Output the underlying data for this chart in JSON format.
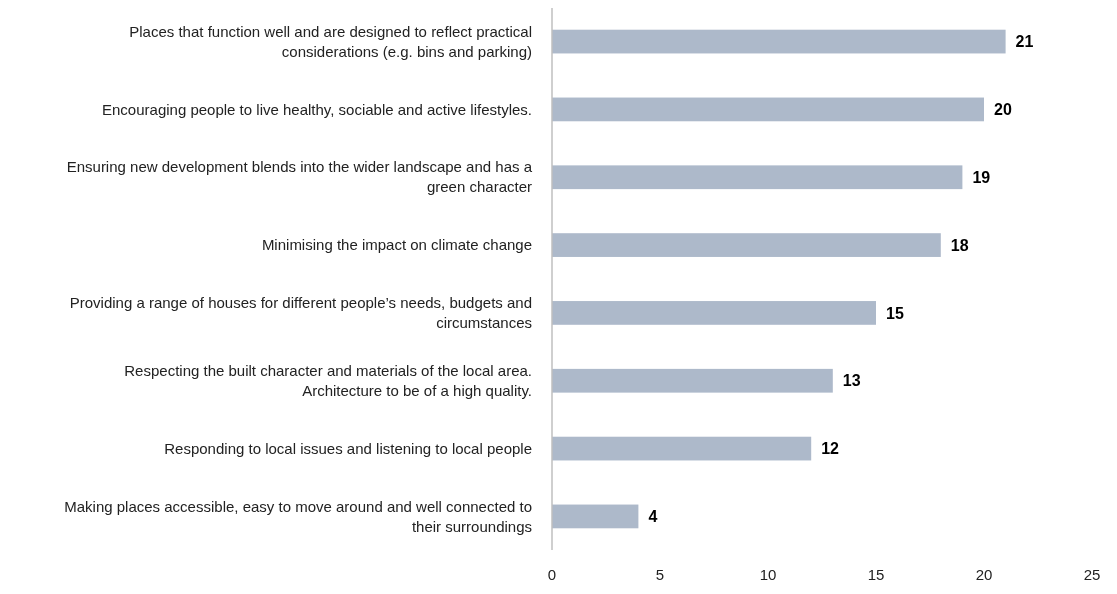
{
  "chart_data": {
    "type": "bar",
    "orientation": "horizontal",
    "categories": [
      "Places that function well and are designed to reflect practical considerations (e.g. bins and parking)",
      "Encouraging people to live healthy, sociable and active lifestyles.",
      "Ensuring new development blends into the wider landscape and has a green character",
      "Minimising the impact on climate change",
      "Providing a range of houses for different people’s needs, budgets and circumstances",
      "Respecting the built character and materials of the local area. Architecture to be of a high quality.",
      "Responding to local issues and listening to local people",
      "Making places accessible, easy to move around and well connected to their surroundings"
    ],
    "values": [
      21,
      20,
      19,
      18,
      15,
      13,
      12,
      4
    ],
    "color": "#adb9ca",
    "xlim": [
      0,
      25
    ],
    "xticks": [
      0,
      5,
      10,
      15,
      20,
      25
    ],
    "data_labels": true,
    "grid": false
  }
}
